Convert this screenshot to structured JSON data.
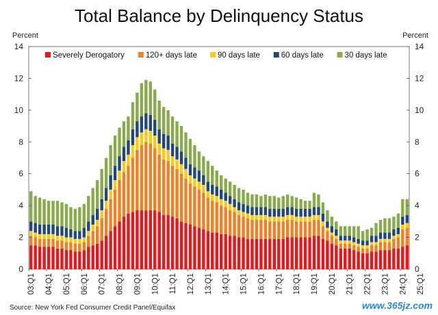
{
  "source": "Source: New York Fed Consumer Credit Panel/Equifax",
  "watermark": "www.365jz.com",
  "chart_data": {
    "type": "bar",
    "stacked": true,
    "title": "Total Balance by Delinquency Status",
    "ylabel_left": "Percent",
    "ylabel_right": "Percent",
    "ylim": [
      0,
      14
    ],
    "yticks": [
      0,
      2,
      4,
      6,
      8,
      10,
      12,
      14
    ],
    "grid": false,
    "legend_position": "top-left",
    "xticks": [
      "03:Q1",
      "04:Q1",
      "05:Q1",
      "06:Q1",
      "07:Q1",
      "08:Q1",
      "09:Q1",
      "10:Q1",
      "11:Q1",
      "12:Q1",
      "13:Q1",
      "14:Q1",
      "15:Q1",
      "16:Q1",
      "17:Q1",
      "18:Q1",
      "19:Q1",
      "20:Q1",
      "21:Q1",
      "22:Q1",
      "23:Q1",
      "24:Q1",
      "25:Q1"
    ],
    "first_period": "03:Q1",
    "colors": {
      "Severely Derogatory": "#e8171c",
      "120+ days late": "#f08023",
      "90 days late": "#ffc814",
      "60 days late": "#22477a",
      "30 days late": "#8aab4c"
    },
    "totals": [
      4.9,
      4.6,
      4.5,
      4.4,
      4.3,
      4.3,
      4.3,
      4.2,
      4.1,
      3.9,
      3.8,
      3.9,
      4.1,
      4.6,
      5.1,
      5.6,
      6.3,
      7.0,
      7.8,
      8.4,
      8.9,
      9.3,
      9.6,
      10.5,
      11.1,
      11.7,
      11.9,
      11.8,
      11.3,
      10.6,
      10.2,
      10.0,
      9.6,
      9.3,
      9.0,
      8.6,
      8.2,
      7.8,
      7.4,
      7.1,
      6.8,
      6.5,
      6.2,
      5.9,
      5.7,
      5.5,
      5.3,
      5.1,
      5.0,
      4.8,
      4.7,
      4.7,
      4.6,
      4.7,
      4.6,
      4.6,
      4.5,
      4.6,
      4.7,
      4.6,
      4.5,
      4.4,
      4.3,
      4.3,
      4.8,
      4.7,
      4.2,
      3.7,
      3.3,
      3.0,
      2.7,
      2.7,
      2.7,
      2.7,
      2.7,
      2.4,
      2.5,
      2.6,
      2.9,
      3.1,
      3.2,
      3.2,
      3.3,
      3.5,
      4.4,
      4.4
    ],
    "series": [
      {
        "name": "Severely Derogatory",
        "values": [
          1.5,
          1.5,
          1.4,
          1.4,
          1.4,
          1.4,
          1.3,
          1.3,
          1.2,
          1.2,
          1.1,
          1.1,
          1.2,
          1.4,
          1.5,
          1.6,
          1.8,
          2.1,
          2.4,
          2.7,
          3.0,
          3.3,
          3.5,
          3.6,
          3.7,
          3.7,
          3.7,
          3.7,
          3.7,
          3.6,
          3.4,
          3.4,
          3.3,
          3.2,
          3.0,
          2.9,
          2.8,
          2.7,
          2.6,
          2.5,
          2.4,
          2.3,
          2.3,
          2.2,
          2.2,
          2.1,
          2.1,
          2.0,
          2.0,
          1.9,
          1.9,
          1.9,
          1.9,
          1.9,
          1.9,
          1.9,
          1.9,
          1.9,
          2.0,
          2.0,
          2.0,
          2.0,
          2.0,
          2.0,
          2.1,
          2.1,
          1.9,
          1.8,
          1.6,
          1.5,
          1.3,
          1.3,
          1.3,
          1.2,
          1.1,
          1.0,
          1.0,
          1.1,
          1.1,
          1.2,
          1.2,
          1.2,
          1.3,
          1.3,
          1.4,
          1.5
        ]
      },
      {
        "name": "120+ days late",
        "values": [
          0.6,
          0.5,
          0.5,
          0.5,
          0.5,
          0.5,
          0.5,
          0.5,
          0.5,
          0.5,
          0.5,
          0.5,
          0.5,
          0.7,
          0.9,
          1.1,
          1.4,
          1.7,
          2.0,
          2.3,
          2.6,
          2.8,
          3.0,
          3.4,
          3.8,
          4.1,
          4.3,
          4.2,
          3.9,
          3.6,
          3.5,
          3.4,
          3.2,
          3.1,
          3.0,
          2.8,
          2.6,
          2.5,
          2.4,
          2.3,
          2.1,
          2.0,
          1.9,
          1.8,
          1.7,
          1.6,
          1.5,
          1.4,
          1.3,
          1.3,
          1.2,
          1.2,
          1.2,
          1.2,
          1.1,
          1.1,
          1.1,
          1.1,
          1.1,
          1.1,
          1.0,
          1.0,
          1.0,
          1.0,
          1.0,
          1.0,
          0.8,
          0.6,
          0.5,
          0.4,
          0.3,
          0.3,
          0.3,
          0.3,
          0.3,
          0.3,
          0.3,
          0.4,
          0.4,
          0.5,
          0.5,
          0.5,
          0.6,
          0.7,
          1.1,
          1.1
        ]
      },
      {
        "name": "90 days late",
        "values": [
          0.3,
          0.3,
          0.3,
          0.3,
          0.3,
          0.3,
          0.3,
          0.3,
          0.3,
          0.3,
          0.3,
          0.3,
          0.3,
          0.3,
          0.4,
          0.4,
          0.5,
          0.5,
          0.6,
          0.6,
          0.6,
          0.7,
          0.7,
          0.8,
          0.8,
          0.8,
          0.8,
          0.8,
          0.8,
          0.7,
          0.7,
          0.7,
          0.6,
          0.6,
          0.6,
          0.6,
          0.5,
          0.5,
          0.5,
          0.5,
          0.4,
          0.4,
          0.4,
          0.4,
          0.4,
          0.4,
          0.3,
          0.3,
          0.3,
          0.3,
          0.3,
          0.3,
          0.3,
          0.3,
          0.3,
          0.3,
          0.3,
          0.3,
          0.3,
          0.3,
          0.3,
          0.3,
          0.3,
          0.3,
          0.3,
          0.3,
          0.3,
          0.2,
          0.2,
          0.2,
          0.2,
          0.2,
          0.2,
          0.2,
          0.2,
          0.2,
          0.2,
          0.2,
          0.2,
          0.2,
          0.2,
          0.2,
          0.2,
          0.2,
          0.3,
          0.3
        ]
      },
      {
        "name": "60 days late",
        "values": [
          0.6,
          0.6,
          0.6,
          0.6,
          0.6,
          0.6,
          0.6,
          0.6,
          0.6,
          0.5,
          0.5,
          0.5,
          0.6,
          0.6,
          0.6,
          0.7,
          0.7,
          0.8,
          0.9,
          0.9,
          0.9,
          0.9,
          0.9,
          1.0,
          1.0,
          1.0,
          1.0,
          1.0,
          1.0,
          0.9,
          0.9,
          0.9,
          0.8,
          0.8,
          0.8,
          0.7,
          0.7,
          0.7,
          0.7,
          0.6,
          0.6,
          0.6,
          0.6,
          0.6,
          0.5,
          0.5,
          0.5,
          0.5,
          0.5,
          0.5,
          0.5,
          0.5,
          0.5,
          0.5,
          0.5,
          0.5,
          0.5,
          0.5,
          0.5,
          0.5,
          0.5,
          0.5,
          0.5,
          0.5,
          0.5,
          0.5,
          0.5,
          0.4,
          0.4,
          0.4,
          0.3,
          0.3,
          0.3,
          0.3,
          0.3,
          0.3,
          0.3,
          0.4,
          0.4,
          0.4,
          0.4,
          0.4,
          0.4,
          0.4,
          0.5,
          0.5
        ]
      },
      {
        "name": "30 days late",
        "values": [
          1.9,
          1.7,
          1.7,
          1.6,
          1.5,
          1.5,
          1.6,
          1.5,
          1.5,
          1.4,
          1.4,
          1.5,
          1.5,
          1.6,
          1.7,
          1.8,
          1.9,
          1.9,
          1.9,
          1.9,
          1.8,
          1.6,
          1.5,
          1.7,
          1.8,
          2.1,
          2.1,
          2.1,
          1.9,
          1.8,
          1.7,
          1.6,
          1.7,
          1.6,
          1.6,
          1.6,
          1.6,
          1.4,
          1.2,
          1.2,
          1.3,
          1.2,
          1.0,
          0.9,
          0.9,
          0.9,
          0.9,
          0.9,
          0.9,
          0.8,
          0.8,
          0.8,
          0.7,
          0.8,
          0.8,
          0.8,
          0.7,
          0.8,
          0.8,
          0.7,
          0.7,
          0.6,
          0.5,
          0.5,
          0.9,
          0.8,
          0.7,
          0.7,
          0.6,
          0.5,
          0.6,
          0.6,
          0.6,
          0.7,
          0.8,
          0.6,
          0.7,
          0.5,
          0.8,
          0.8,
          0.9,
          0.9,
          0.8,
          0.9,
          1.1,
          1.0
        ]
      }
    ]
  }
}
